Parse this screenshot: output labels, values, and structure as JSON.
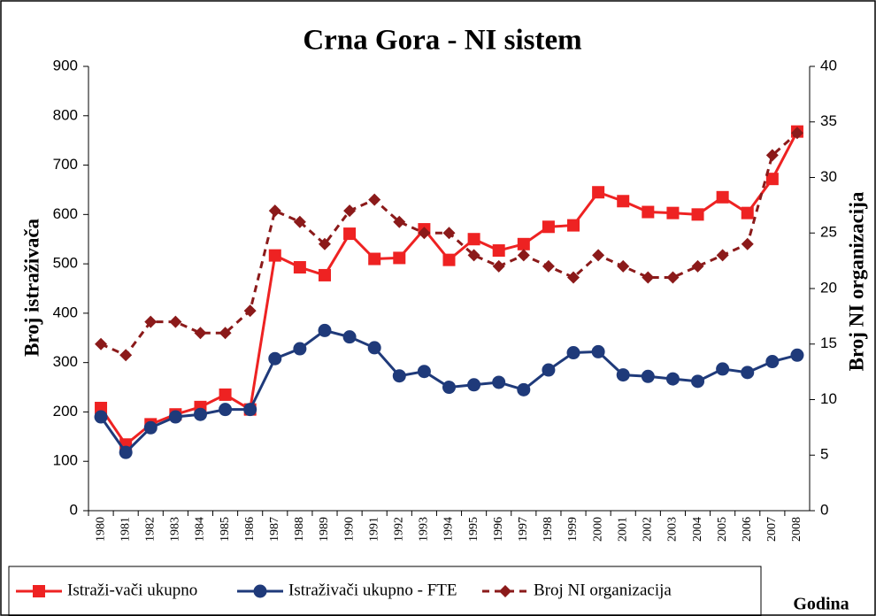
{
  "chart_data": {
    "type": "line",
    "title": "Crna Gora - NI sistem",
    "y_label": "Broj istraživača",
    "y2_label": "Broj NI organizacija",
    "x_label": "Godina",
    "categories": [
      "1980",
      "1981",
      "1982",
      "1983",
      "1984",
      "1985",
      "1986",
      "1987",
      "1988",
      "1989",
      "1990",
      "1991",
      "1992",
      "1993",
      "1994",
      "1995",
      "1996",
      "1997",
      "1998",
      "1999",
      "2000",
      "2001",
      "2002",
      "2003",
      "2004",
      "2005",
      "2006",
      "2007",
      "2008"
    ],
    "series": [
      {
        "name": "Istraži-vači ukupno",
        "color": "#ee2222",
        "marker": "square",
        "dash": false,
        "values": [
          208,
          134,
          175,
          195,
          210,
          235,
          205,
          517,
          493,
          477,
          561,
          510,
          512,
          570,
          508,
          550,
          527,
          540,
          575,
          578,
          645,
          627,
          605,
          603,
          600,
          635,
          603,
          672,
          768
        ]
      },
      {
        "name": "Istraživači ukupno - FTE",
        "color": "#1f3a7a",
        "marker": "circle",
        "dash": false,
        "values": [
          190,
          118,
          168,
          190,
          195,
          205,
          205,
          308,
          328,
          365,
          352,
          330,
          273,
          282,
          250,
          255,
          260,
          245,
          285,
          320,
          322,
          275,
          272,
          267,
          262,
          287,
          280,
          302,
          315
        ]
      },
      {
        "name": "Broj NI organizacija",
        "color": "#8b1a1a",
        "marker": "diamond",
        "dash": true,
        "axis": "y2",
        "values": [
          15,
          14,
          17,
          17,
          16,
          16,
          18,
          27,
          26,
          24,
          27,
          28,
          26,
          25,
          25,
          23,
          22,
          23,
          22,
          21,
          23,
          22,
          21,
          21,
          22,
          23,
          24,
          32,
          34
        ]
      }
    ],
    "ylim": [
      0,
      900
    ],
    "yticks": [
      0,
      100,
      200,
      300,
      400,
      500,
      600,
      700,
      800,
      900
    ],
    "y2lim": [
      0,
      40
    ],
    "y2ticks": [
      0,
      5,
      10,
      15,
      20,
      25,
      30,
      35,
      40
    ],
    "legend": "bottom"
  }
}
